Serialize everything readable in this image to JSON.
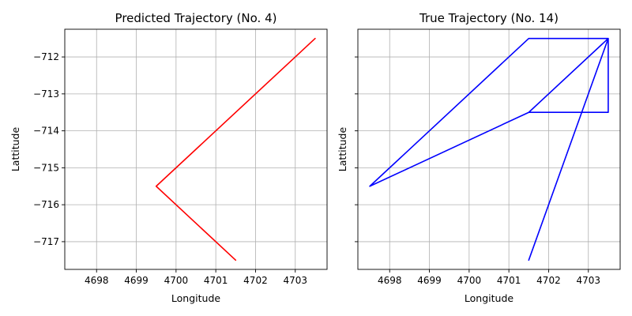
{
  "chart_data": [
    {
      "type": "line",
      "title": "Predicted Trajectory (No. 4)",
      "xlabel": "Longitude",
      "ylabel": "Lattitude",
      "xlim": [
        4697.2,
        4703.8
      ],
      "ylim": [
        -717.75,
        -711.25
      ],
      "xticks": [
        4698,
        4699,
        4700,
        4701,
        4702,
        4703
      ],
      "xtick_labels": [
        "4698",
        "4699",
        "4700",
        "4701",
        "4702",
        "4703"
      ],
      "yticks": [
        -712,
        -713,
        -714,
        -715,
        -716,
        -717
      ],
      "ytick_labels": [
        "−712",
        "−713",
        "−714",
        "−715",
        "−716",
        "−717"
      ],
      "show_ytick_labels": true,
      "grid": true,
      "series": [
        {
          "color": "#ff0000",
          "x": [
            4703.5,
            4699.5,
            4701.5
          ],
          "y": [
            -711.5,
            -715.5,
            -717.5
          ]
        }
      ]
    },
    {
      "type": "line",
      "title": "True Trajectory (No. 14)",
      "xlabel": "Longitude",
      "ylabel": "Lattitude",
      "xlim": [
        4697.2,
        4703.8
      ],
      "ylim": [
        -717.75,
        -711.25
      ],
      "xticks": [
        4698,
        4699,
        4700,
        4701,
        4702,
        4703
      ],
      "xtick_labels": [
        "4698",
        "4699",
        "4700",
        "4701",
        "4702",
        "4703"
      ],
      "yticks": [
        -712,
        -713,
        -714,
        -715,
        -716,
        -717
      ],
      "ytick_labels": [
        "",
        "",
        "",
        "",
        "",
        ""
      ],
      "show_ytick_labels": false,
      "grid": true,
      "series": [
        {
          "color": "#0000ff",
          "x": [
            4701.5,
            4703.5,
            4703.5,
            4701.5,
            4697.5,
            4701.5,
            4703.5,
            4701.5,
            4703.5
          ],
          "y": [
            -717.5,
            -711.5,
            -713.5,
            -713.5,
            -715.5,
            -711.5,
            -711.5,
            -713.5,
            -711.5
          ]
        }
      ]
    }
  ]
}
